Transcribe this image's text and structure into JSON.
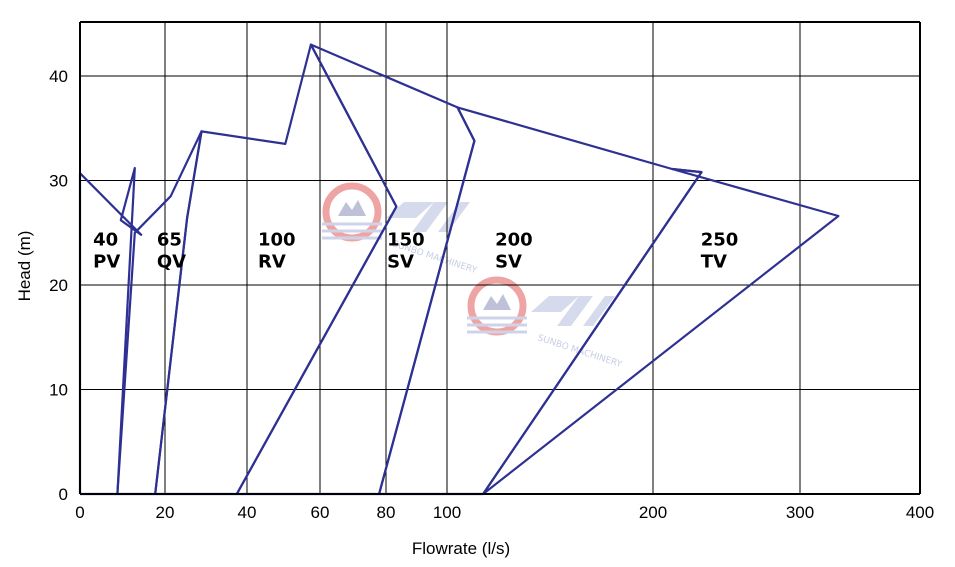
{
  "chart_data": {
    "type": "line",
    "title": "",
    "xlabel": "Flowrate (l/s)",
    "ylabel": "Head (m)",
    "x_ticks": [
      0,
      20,
      40,
      60,
      80,
      100,
      200,
      300,
      400
    ],
    "y_ticks": [
      0,
      10,
      20,
      30,
      40
    ],
    "xlim": [
      0,
      400
    ],
    "ylim": [
      0,
      45
    ],
    "grid": true,
    "series": [
      {
        "name": "40 PV",
        "label_line1": "40",
        "label_line2": "PV",
        "x": [
          0,
          0,
          14.4,
          9.6,
          12.9,
          8.8,
          0
        ],
        "y": [
          0,
          30.7,
          24.8,
          26.2,
          31.2,
          0,
          0
        ]
      },
      {
        "name": "65 QV",
        "label_line1": "65",
        "label_line2": "QV",
        "x": [
          8.8,
          12.9,
          21.4,
          28.9,
          25.4,
          17.7,
          8.8
        ],
        "y": [
          0,
          25,
          28.5,
          34.7,
          26.4,
          0,
          0
        ]
      },
      {
        "name": "100 RV",
        "label_line1": "100",
        "label_line2": "RV",
        "x": [
          17.7,
          25.4,
          28.9,
          50.5,
          57.5,
          83.4,
          37.5,
          17.7
        ],
        "y": [
          0,
          26.4,
          34.7,
          33.5,
          43,
          27.5,
          0,
          0
        ]
      },
      {
        "name": "150 SV",
        "label_line1": "150",
        "label_line2": "SV",
        "x": [
          37.5,
          83.4,
          57.5,
          105.1,
          113.3,
          77.9,
          37.5
        ],
        "y": [
          0,
          27.5,
          43,
          37,
          33.8,
          0,
          0
        ]
      },
      {
        "name": "200 SV",
        "label_line1": "200",
        "label_line2": "SV",
        "x": [
          77.9,
          113.3,
          105.1,
          213,
          233,
          117.5,
          77.9
        ],
        "y": [
          0,
          33.8,
          37,
          31.1,
          30.8,
          0,
          0
        ]
      },
      {
        "name": "250 TV",
        "label_line1": "250",
        "label_line2": "TV",
        "x": [
          117.5,
          233,
          213,
          332,
          117.5
        ],
        "y": [
          0,
          30.8,
          31.1,
          26.6,
          0
        ]
      }
    ]
  },
  "watermark": {
    "brand_text": "SUNBO MACHINERY",
    "accent_color": "#e35b5b",
    "brand_color": "#2e3192"
  }
}
